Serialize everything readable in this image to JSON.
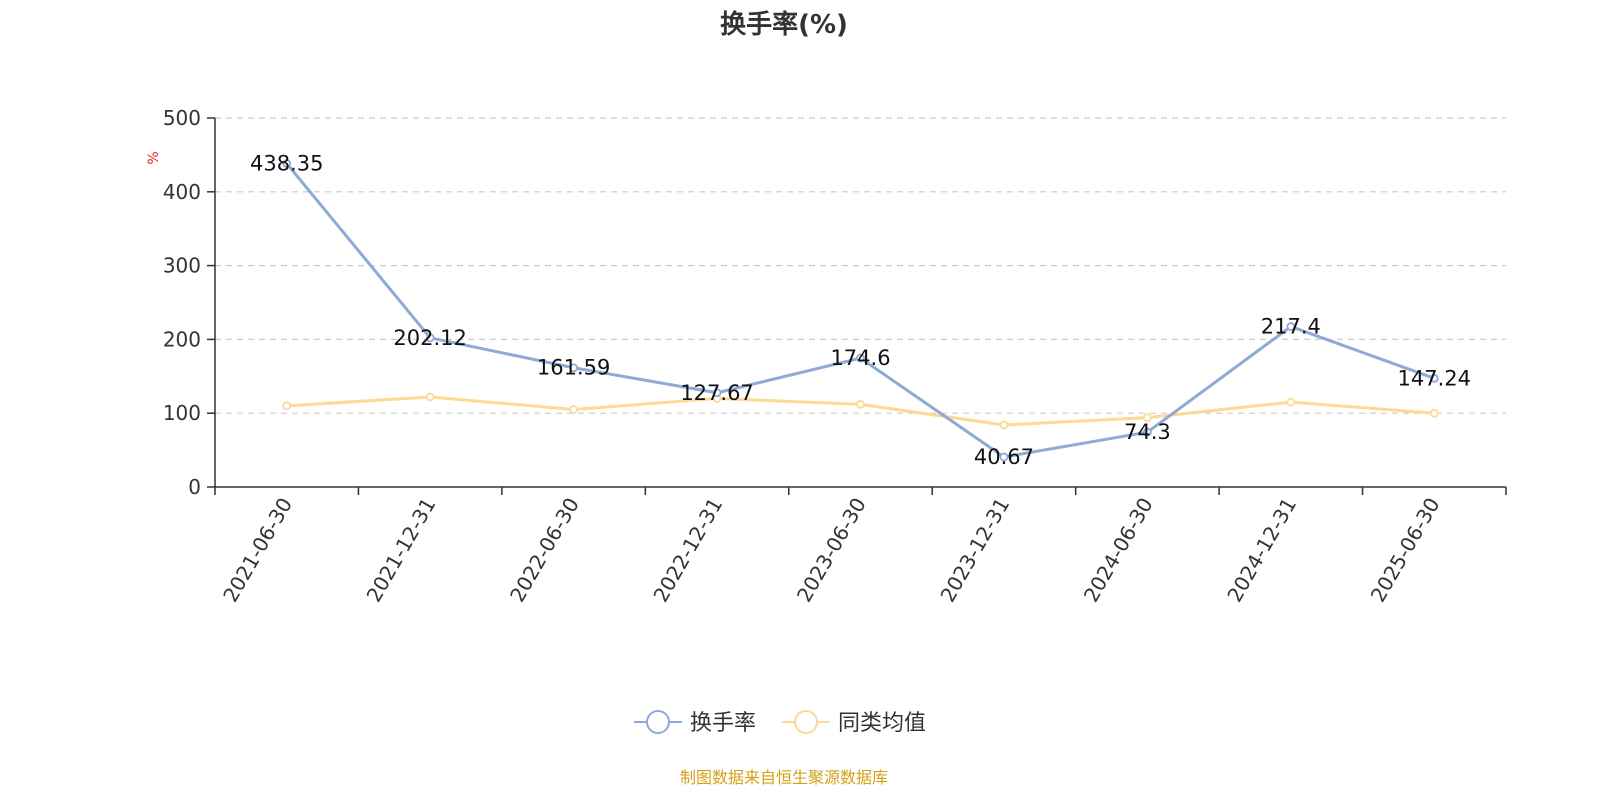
{
  "chart_data": {
    "type": "line",
    "title": "换手率(%)",
    "ylabel": "%",
    "xlabel": "",
    "ylim": [
      0,
      500
    ],
    "yticks": [
      0,
      100,
      200,
      300,
      400,
      500
    ],
    "grid": true,
    "legend_position": "bottom-center",
    "categories": [
      "2021-06-30",
      "2021-12-31",
      "2022-06-30",
      "2022-12-31",
      "2023-06-30",
      "2023-12-31",
      "2024-06-30",
      "2024-12-31",
      "2025-06-30"
    ],
    "series": [
      {
        "name": "换手率",
        "color": "#8eaad6",
        "show_labels": true,
        "values": [
          438.35,
          202.12,
          161.59,
          127.67,
          174.6,
          40.67,
          74.3,
          217.4,
          147.24
        ]
      },
      {
        "name": "同类均值",
        "color": "#fdd995",
        "show_labels": false,
        "values": [
          110,
          122,
          105,
          120,
          112,
          84,
          94,
          115,
          100
        ]
      }
    ]
  },
  "footer": {
    "source": "制图数据来自恒生聚源数据库",
    "source_color": "#d4a017"
  },
  "ylabel_color": "#e8281e"
}
